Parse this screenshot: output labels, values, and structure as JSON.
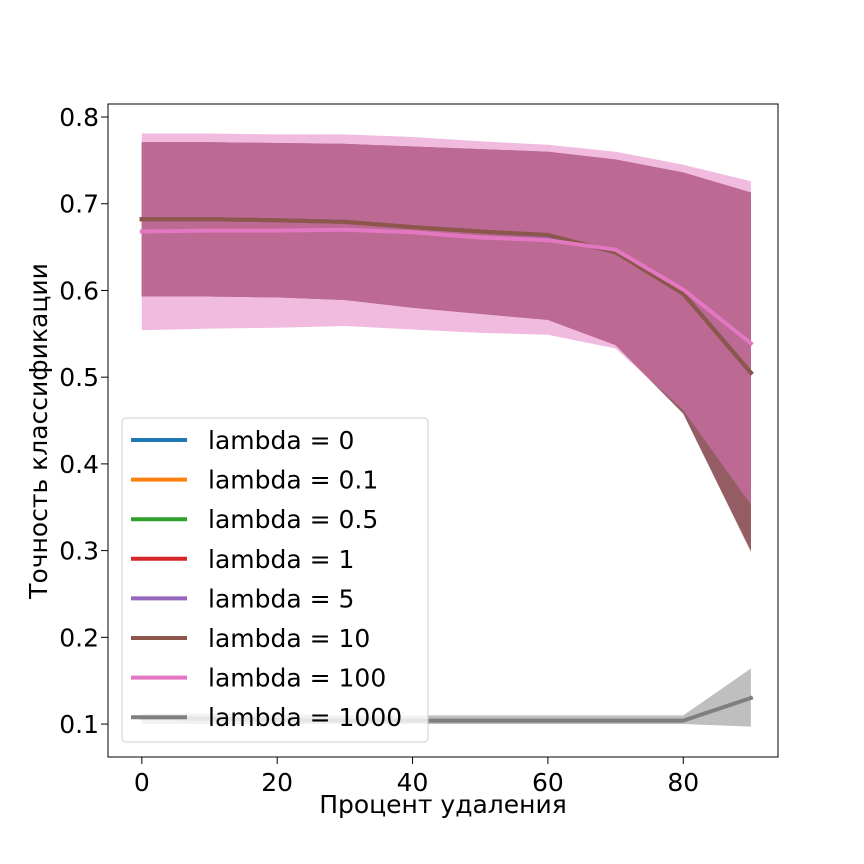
{
  "chart_data": {
    "type": "line",
    "title": "",
    "xlabel": "Процент удаления",
    "ylabel": "Точность классификации",
    "xlim": [
      -5,
      94
    ],
    "ylim": [
      0.062,
      0.815
    ],
    "x_ticks": [
      0,
      20,
      40,
      60,
      80
    ],
    "y_ticks": [
      0.1,
      0.2,
      0.3,
      0.4,
      0.5,
      0.6,
      0.7,
      0.8
    ],
    "x_tick_labels": [
      "0",
      "20",
      "40",
      "60",
      "80"
    ],
    "y_tick_labels": [
      "0.1",
      "0.2",
      "0.3",
      "0.4",
      "0.5",
      "0.6",
      "0.7",
      "0.8"
    ],
    "grid": false,
    "legend_position": "lower-left",
    "x": [
      0,
      10,
      20,
      30,
      40,
      50,
      60,
      70,
      80,
      90
    ],
    "series": [
      {
        "name": "lambda = 0",
        "color": "#1f77b4",
        "values": [
          0.682,
          0.682,
          0.681,
          0.679,
          0.673,
          0.668,
          0.663,
          0.644,
          0.597,
          0.505
        ],
        "lower": [
          0.593,
          0.593,
          0.592,
          0.589,
          0.58,
          0.573,
          0.566,
          0.537,
          0.458,
          0.3
        ],
        "upper": [
          0.771,
          0.771,
          0.77,
          0.769,
          0.766,
          0.763,
          0.76,
          0.751,
          0.736,
          0.713
        ]
      },
      {
        "name": "lambda = 0.1",
        "color": "#ff7f0e",
        "values": [
          0.682,
          0.682,
          0.681,
          0.679,
          0.673,
          0.668,
          0.663,
          0.644,
          0.597,
          0.505
        ],
        "lower": [
          0.593,
          0.593,
          0.592,
          0.589,
          0.58,
          0.573,
          0.566,
          0.537,
          0.458,
          0.3
        ],
        "upper": [
          0.771,
          0.771,
          0.77,
          0.769,
          0.766,
          0.763,
          0.76,
          0.751,
          0.736,
          0.713
        ]
      },
      {
        "name": "lambda = 0.5",
        "color": "#2ca02c",
        "values": [
          0.682,
          0.682,
          0.681,
          0.679,
          0.673,
          0.668,
          0.663,
          0.644,
          0.597,
          0.505
        ],
        "lower": [
          0.593,
          0.593,
          0.592,
          0.589,
          0.58,
          0.573,
          0.566,
          0.537,
          0.458,
          0.3
        ],
        "upper": [
          0.771,
          0.771,
          0.77,
          0.769,
          0.766,
          0.763,
          0.76,
          0.751,
          0.736,
          0.713
        ]
      },
      {
        "name": "lambda = 1",
        "color": "#d62728",
        "values": [
          0.682,
          0.682,
          0.681,
          0.679,
          0.673,
          0.668,
          0.663,
          0.644,
          0.597,
          0.505
        ],
        "lower": [
          0.593,
          0.593,
          0.592,
          0.589,
          0.58,
          0.573,
          0.566,
          0.537,
          0.458,
          0.3
        ],
        "upper": [
          0.771,
          0.771,
          0.77,
          0.769,
          0.766,
          0.763,
          0.76,
          0.751,
          0.736,
          0.713
        ]
      },
      {
        "name": "lambda = 5",
        "color": "#9467bd",
        "values": [
          0.682,
          0.682,
          0.681,
          0.679,
          0.673,
          0.668,
          0.663,
          0.644,
          0.597,
          0.505
        ],
        "lower": [
          0.593,
          0.593,
          0.592,
          0.589,
          0.58,
          0.573,
          0.566,
          0.537,
          0.458,
          0.3
        ],
        "upper": [
          0.771,
          0.771,
          0.77,
          0.769,
          0.766,
          0.763,
          0.76,
          0.751,
          0.736,
          0.713
        ]
      },
      {
        "name": "lambda = 10",
        "color": "#8c564b",
        "values": [
          0.682,
          0.682,
          0.681,
          0.679,
          0.673,
          0.668,
          0.664,
          0.644,
          0.596,
          0.505
        ],
        "lower": [
          0.593,
          0.593,
          0.592,
          0.589,
          0.58,
          0.573,
          0.566,
          0.537,
          0.458,
          0.298
        ],
        "upper": [
          0.771,
          0.771,
          0.77,
          0.769,
          0.766,
          0.763,
          0.76,
          0.751,
          0.736,
          0.713
        ]
      },
      {
        "name": "lambda = 100",
        "color": "#e377c2",
        "values": [
          0.668,
          0.669,
          0.669,
          0.67,
          0.667,
          0.661,
          0.658,
          0.647,
          0.601,
          0.539
        ],
        "lower": [
          0.554,
          0.556,
          0.557,
          0.559,
          0.555,
          0.551,
          0.549,
          0.533,
          0.462,
          0.353
        ],
        "upper": [
          0.781,
          0.781,
          0.78,
          0.78,
          0.777,
          0.772,
          0.768,
          0.76,
          0.745,
          0.726
        ]
      },
      {
        "name": "lambda = 1000",
        "color": "#7f7f7f",
        "values": [
          0.107,
          0.106,
          0.105,
          0.104,
          0.104,
          0.104,
          0.104,
          0.104,
          0.104,
          0.13
        ],
        "lower": [
          0.1,
          0.1,
          0.1,
          0.1,
          0.1,
          0.1,
          0.1,
          0.1,
          0.1,
          0.097
        ],
        "upper": [
          0.112,
          0.112,
          0.111,
          0.11,
          0.11,
          0.11,
          0.11,
          0.11,
          0.11,
          0.164
        ]
      }
    ]
  }
}
